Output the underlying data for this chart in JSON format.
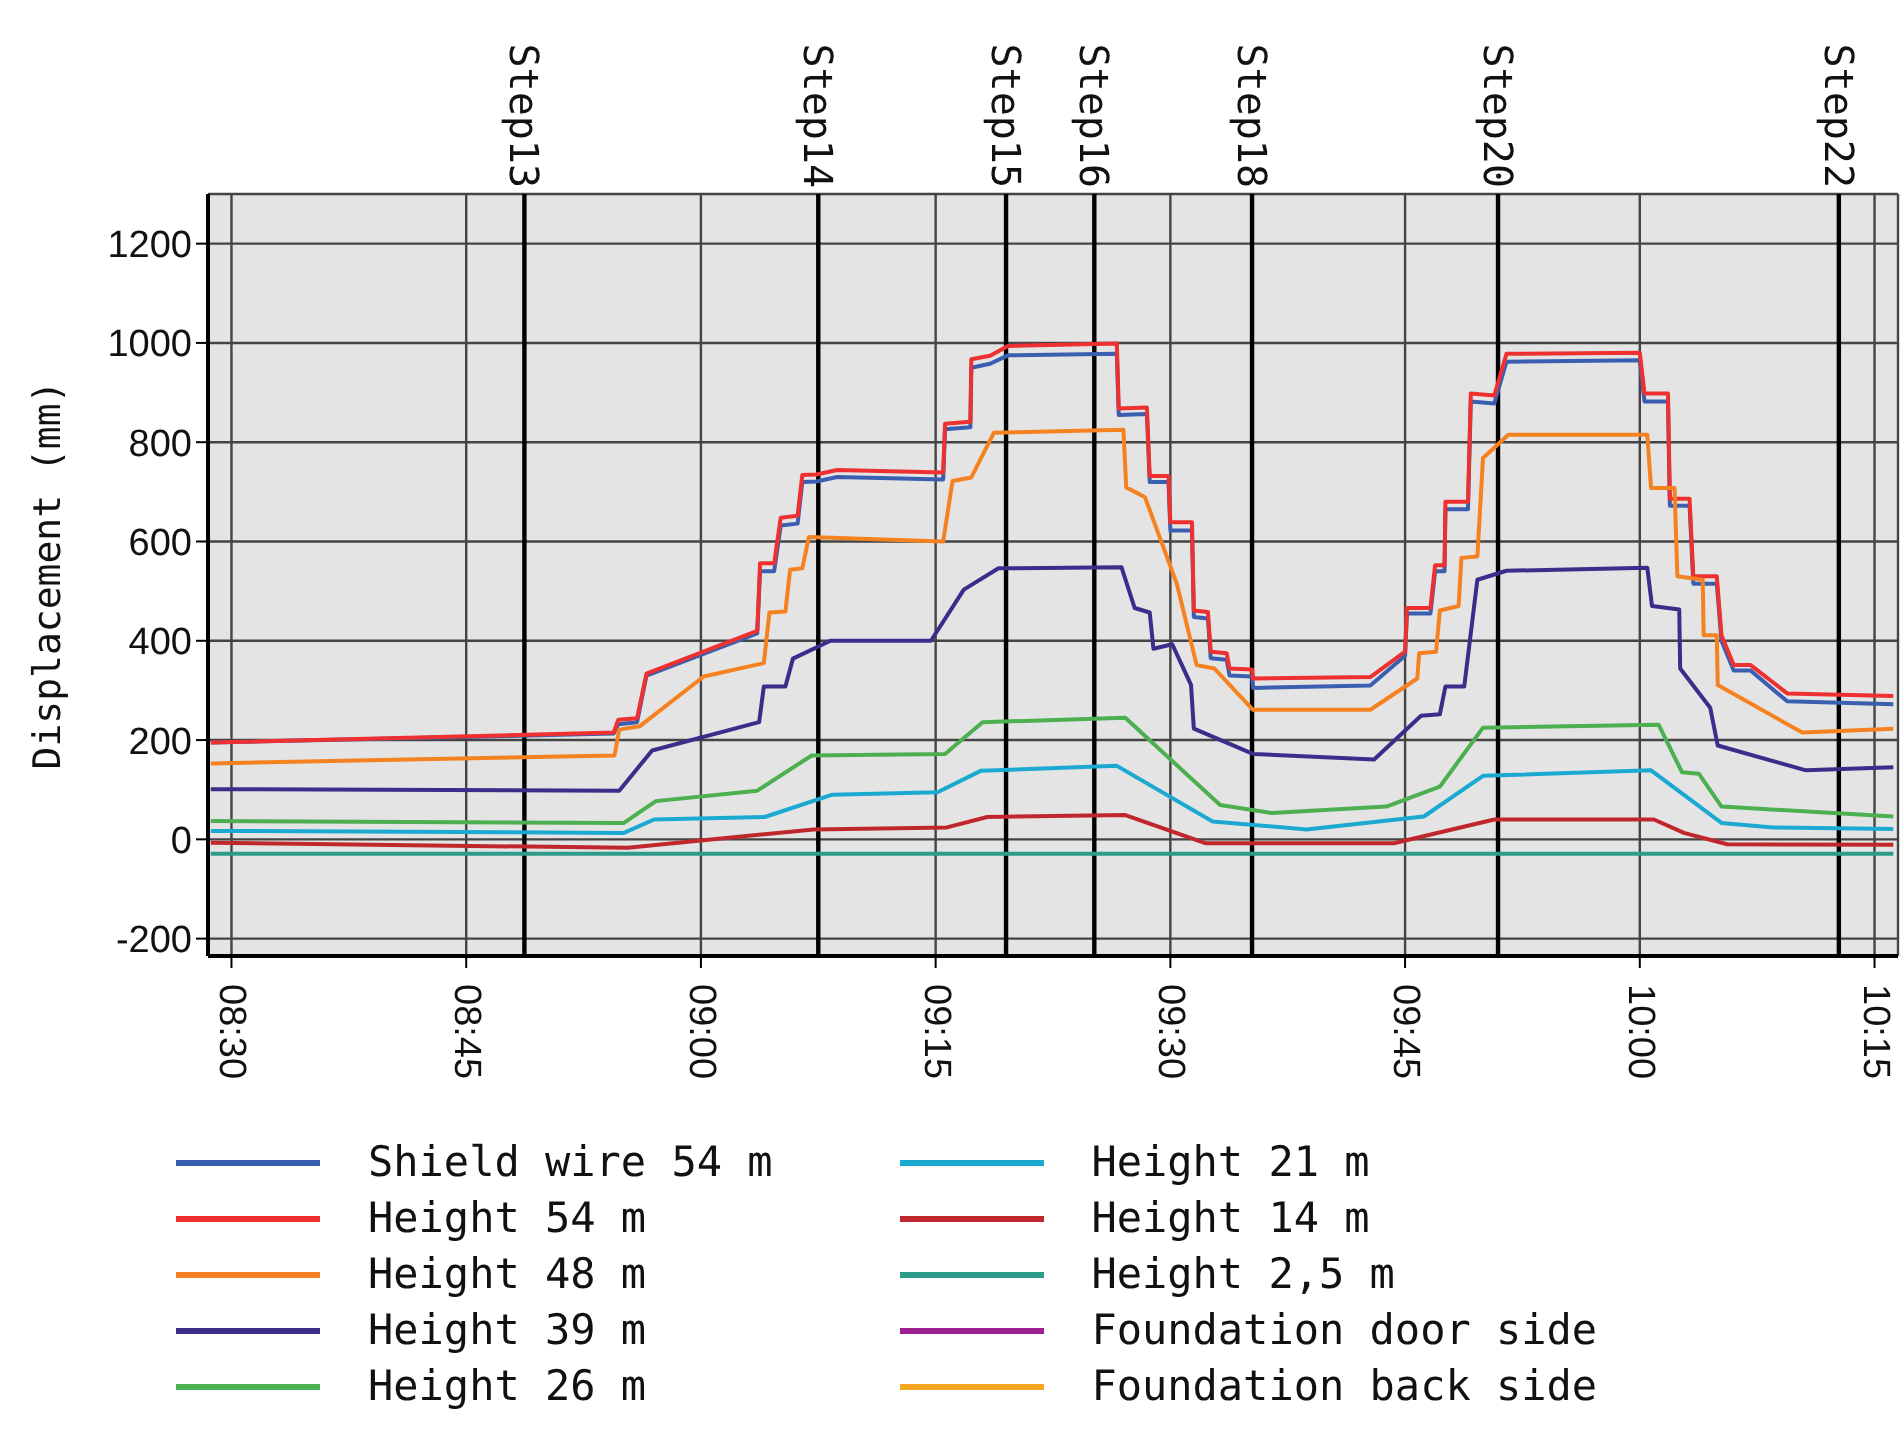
{
  "chart_data": {
    "type": "line",
    "ylabel": "Displacement (mm)",
    "xlim": [
      8.475,
      10.275
    ],
    "xticks": [
      {
        "value": 8.5,
        "label": "08:30"
      },
      {
        "value": 8.75,
        "label": "08:45"
      },
      {
        "value": 9,
        "label": "09:00"
      },
      {
        "value": 9.25,
        "label": "09:15"
      },
      {
        "value": 9.5,
        "label": "09:30"
      },
      {
        "value": 9.75,
        "label": "09:45"
      },
      {
        "value": 10,
        "label": "10:00"
      },
      {
        "value": 10.25,
        "label": "10:15"
      }
    ],
    "ylim": [
      -235,
      1300
    ],
    "yticks": [
      -200,
      0,
      200,
      400,
      600,
      800,
      1000,
      1200
    ],
    "grid": true,
    "legend": "bottom",
    "ref_lines": [
      {
        "axis": "x",
        "value": 8.812,
        "label": "Step13"
      },
      {
        "axis": "x",
        "value": 9.125,
        "label": "Step14"
      },
      {
        "axis": "x",
        "value": 9.325,
        "label": "Step15"
      },
      {
        "axis": "x",
        "value": 9.419,
        "label": "Step16"
      },
      {
        "axis": "x",
        "value": 9.587,
        "label": "Step18"
      },
      {
        "axis": "x",
        "value": 9.849,
        "label": "Step20"
      },
      {
        "axis": "x",
        "value": 10.212,
        "label": "Step22"
      }
    ],
    "series": [
      {
        "name": "Shield wire 54 m",
        "color": "#3a5fb0",
        "x": [
          8.478,
          8.907,
          8.912,
          8.932,
          8.942,
          9.06,
          9.063,
          9.078,
          9.085,
          9.103,
          9.108,
          9.123,
          9.145,
          9.258,
          9.26,
          9.287,
          9.288,
          9.308,
          9.327,
          9.443,
          9.445,
          9.475,
          9.478,
          9.498,
          9.5,
          9.523,
          9.525,
          9.54,
          9.543,
          9.56,
          9.563,
          9.587,
          9.588,
          9.713,
          9.75,
          9.752,
          9.777,
          9.782,
          9.792,
          9.793,
          9.817,
          9.82,
          9.845,
          9.858,
          10.0,
          10.005,
          10.03,
          10.032,
          10.053,
          10.057,
          10.082,
          10.087,
          10.1,
          10.118,
          10.157,
          10.27
        ],
        "values": [
          195,
          213,
          232,
          236,
          330,
          415,
          540,
          540,
          632,
          636,
          720,
          721,
          730,
          725,
          826,
          830,
          950,
          958,
          975,
          978,
          855,
          857,
          720,
          720,
          622,
          622,
          448,
          445,
          365,
          362,
          330,
          328,
          305,
          310,
          370,
          455,
          455,
          540,
          540,
          665,
          665,
          882,
          878,
          962,
          965,
          882,
          882,
          672,
          672,
          515,
          515,
          400,
          340,
          340,
          278,
          272
        ]
      },
      {
        "name": "Height 54 m",
        "color": "#ee3030",
        "x": [
          8.478,
          8.907,
          8.912,
          8.932,
          8.942,
          9.06,
          9.063,
          9.078,
          9.085,
          9.103,
          9.108,
          9.123,
          9.145,
          9.258,
          9.26,
          9.287,
          9.288,
          9.308,
          9.327,
          9.443,
          9.445,
          9.475,
          9.478,
          9.498,
          9.5,
          9.523,
          9.525,
          9.54,
          9.543,
          9.56,
          9.563,
          9.587,
          9.588,
          9.713,
          9.75,
          9.752,
          9.777,
          9.782,
          9.792,
          9.793,
          9.817,
          9.82,
          9.845,
          9.858,
          10.0,
          10.005,
          10.03,
          10.032,
          10.053,
          10.057,
          10.082,
          10.087,
          10.1,
          10.118,
          10.157,
          10.27
        ],
        "values": [
          195,
          215,
          241,
          244,
          334,
          420,
          556,
          556,
          648,
          652,
          734,
          735,
          744,
          739,
          837,
          841,
          967,
          974,
          994,
          999,
          868,
          870,
          732,
          732,
          639,
          639,
          461,
          458,
          378,
          375,
          344,
          342,
          324,
          327,
          378,
          466,
          466,
          552,
          552,
          680,
          680,
          898,
          894,
          978,
          980,
          898,
          898,
          686,
          686,
          530,
          530,
          411,
          351,
          351,
          294,
          289
        ]
      },
      {
        "name": "Height 48 m",
        "color": "#f58220",
        "x": [
          8.478,
          8.908,
          8.913,
          8.935,
          9.003,
          9.067,
          9.073,
          9.09,
          9.095,
          9.108,
          9.115,
          9.258,
          9.268,
          9.288,
          9.312,
          9.45,
          9.453,
          9.473,
          9.507,
          9.528,
          9.547,
          9.588,
          9.713,
          9.763,
          9.765,
          9.783,
          9.787,
          9.807,
          9.81,
          9.827,
          9.833,
          9.86,
          10.008,
          10.012,
          10.037,
          10.04,
          10.067,
          10.068,
          10.082,
          10.083,
          10.173,
          10.27
        ],
        "values": [
          153,
          169,
          221,
          228,
          328,
          355,
          457,
          459,
          543,
          546,
          609,
          600,
          722,
          729,
          819,
          825,
          709,
          689,
          514,
          351,
          344,
          261,
          261,
          324,
          375,
          378,
          461,
          470,
          567,
          570,
          768,
          815,
          815,
          708,
          708,
          530,
          523,
          411,
          411,
          311,
          215,
          223
        ]
      },
      {
        "name": "Height 39 m",
        "color": "#3b2d8a",
        "x": [
          8.478,
          8.913,
          8.948,
          9.062,
          9.067,
          9.09,
          9.098,
          9.138,
          9.245,
          9.28,
          9.317,
          9.448,
          9.462,
          9.478,
          9.482,
          9.502,
          9.522,
          9.525,
          9.588,
          9.717,
          9.767,
          9.787,
          9.793,
          9.813,
          9.827,
          9.858,
          10.008,
          10.013,
          10.042,
          10.043,
          10.075,
          10.083,
          10.177,
          10.27
        ],
        "values": [
          101,
          98,
          179,
          236,
          308,
          308,
          364,
          400,
          400,
          503,
          546,
          548,
          466,
          457,
          384,
          393,
          311,
          223,
          172,
          161,
          249,
          252,
          308,
          308,
          523,
          541,
          547,
          470,
          463,
          344,
          265,
          189,
          139,
          145
        ]
      },
      {
        "name": "Height 26 m",
        "color": "#4caf50",
        "x": [
          8.478,
          8.918,
          8.952,
          9.06,
          9.118,
          9.26,
          9.3,
          9.452,
          9.553,
          9.608,
          9.73,
          9.787,
          9.833,
          10.02,
          10.045,
          10.063,
          10.087,
          10.27
        ],
        "values": [
          37,
          33,
          77,
          98,
          169,
          172,
          236,
          245,
          69,
          53,
          66,
          106,
          225,
          231,
          135,
          132,
          66,
          46
        ]
      },
      {
        "name": "Height 21 m",
        "color": "#1ba9d1",
        "x": [
          8.478,
          8.918,
          8.95,
          9.068,
          9.14,
          9.252,
          9.298,
          9.443,
          9.545,
          9.645,
          9.77,
          9.833,
          10.012,
          10.087,
          10.142,
          10.27
        ],
        "values": [
          17,
          13,
          40,
          45,
          90,
          95,
          138,
          148,
          36,
          20,
          46,
          128,
          139,
          33,
          24,
          21
        ]
      },
      {
        "name": "Height 14 m",
        "color": "#c0272d",
        "x": [
          8.478,
          8.922,
          9.12,
          9.262,
          9.305,
          9.452,
          9.538,
          9.738,
          9.845,
          10.015,
          10.047,
          10.093,
          10.27
        ],
        "values": [
          -7,
          -17,
          20,
          24,
          45,
          49,
          -8,
          -8,
          40,
          40,
          13,
          -10,
          -11
        ]
      },
      {
        "name": "Height 2,5 m",
        "color": "#2e9c8a",
        "x": [
          8.478,
          10.27
        ],
        "values": [
          -29,
          -29
        ]
      },
      {
        "name": "Foundation door side",
        "color": "#9b1f8f"
      },
      {
        "name": "Foundation back side",
        "color": "#f5a623"
      }
    ]
  }
}
